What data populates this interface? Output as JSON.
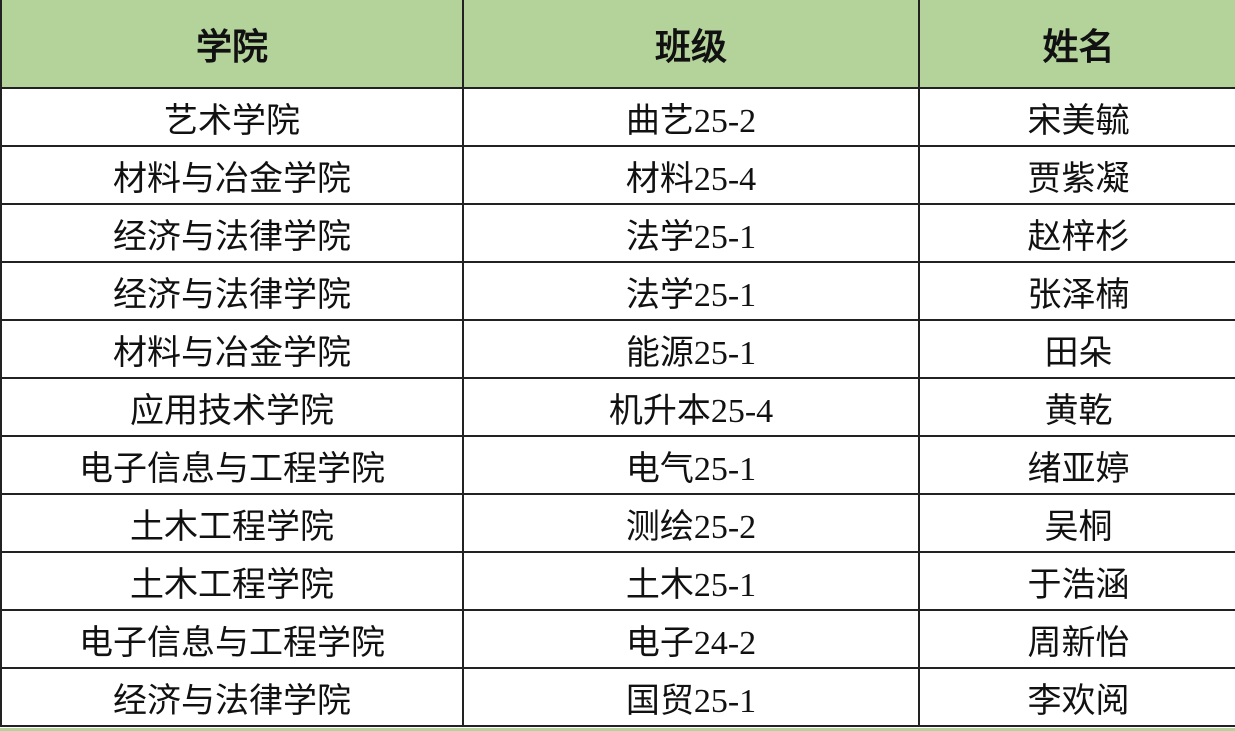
{
  "table": {
    "headers": [
      "学院",
      "班级",
      "姓名"
    ],
    "header_color": "#b3d39b",
    "rows": [
      [
        "艺术学院",
        "曲艺25-2",
        "宋美毓"
      ],
      [
        "材料与冶金学院",
        "材料25-4",
        "贾紫凝"
      ],
      [
        "经济与法律学院",
        "法学25-1",
        "赵梓杉"
      ],
      [
        "经济与法律学院",
        "法学25-1",
        "张泽楠"
      ],
      [
        "材料与冶金学院",
        "能源25-1",
        "田朵"
      ],
      [
        "应用技术学院",
        "机升本25-4",
        "黄乾"
      ],
      [
        "电子信息与工程学院",
        "电气25-1",
        "绪亚婷"
      ],
      [
        "土木工程学院",
        "测绘25-2",
        "吴桐"
      ],
      [
        "土木工程学院",
        "土木25-1",
        "于浩涵"
      ],
      [
        "电子信息与工程学院",
        "电子24-2",
        "周新怡"
      ],
      [
        "经济与法律学院",
        "国贸25-1",
        "李欢阅"
      ]
    ]
  }
}
